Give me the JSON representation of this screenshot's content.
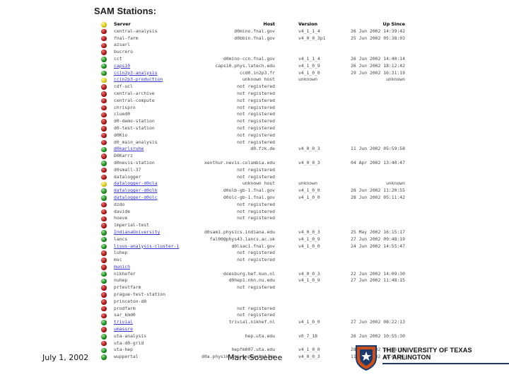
{
  "page": {
    "title": "SAM Stations:"
  },
  "table": {
    "headers": {
      "server": "Server",
      "host": "Host",
      "version": "Version",
      "since": "Up Since"
    },
    "rows": [
      {
        "status": "red",
        "link": false,
        "server": "central-analysis",
        "host": "d0mino.fnal.gov",
        "version": "v4_1_1_4",
        "since": "26 Jun 2002 14:39:42"
      },
      {
        "status": "red",
        "link": false,
        "server": "fnal-farm",
        "host": "d0bbin.fnal.gov",
        "version": "v4_0_0_3p1",
        "since": "25 Jun 2002 05:38:03"
      },
      {
        "status": "red",
        "link": false,
        "server": "azsarl",
        "host": "",
        "version": "",
        "since": ""
      },
      {
        "status": "red",
        "link": false,
        "server": "bucrero",
        "host": "",
        "version": "",
        "since": ""
      },
      {
        "status": "green",
        "link": false,
        "server": "cct",
        "host": "d0mino-ccn.fnal.gov",
        "version": "v4_1_1_4",
        "since": "26 Jun 2002 14:40:14"
      },
      {
        "status": "green",
        "link": true,
        "server": "caps10",
        "host": "caps10.phys.latech.edu",
        "version": "v4_1_0_9",
        "since": "26 Jun 2002 18:12:42"
      },
      {
        "status": "green",
        "link": true,
        "server": "ccin2p3-analysis",
        "host": "ccd0.in2p3.fr",
        "version": "v4_1_0_0",
        "since": "29 Jun 2002 16:31:19"
      },
      {
        "status": "yellow",
        "link": true,
        "server": "ccin2p3-production",
        "host": "unknown host",
        "version": "unknown",
        "since": "unknown"
      },
      {
        "status": "red",
        "link": false,
        "server": "cdf-ucl",
        "host": "not registered",
        "version": "",
        "since": ""
      },
      {
        "status": "red",
        "link": false,
        "server": "central-archive",
        "host": "not registered",
        "version": "",
        "since": ""
      },
      {
        "status": "red",
        "link": false,
        "server": "central-compute",
        "host": "not registered",
        "version": "",
        "since": ""
      },
      {
        "status": "red",
        "link": false,
        "server": "chrispro",
        "host": "not registered",
        "version": "",
        "since": ""
      },
      {
        "status": "red",
        "link": false,
        "server": "clued0",
        "host": "not registered",
        "version": "",
        "since": ""
      },
      {
        "status": "red",
        "link": false,
        "server": "d0-demo-station",
        "host": "not registered",
        "version": "",
        "since": ""
      },
      {
        "status": "red",
        "link": false,
        "server": "d0-test-station",
        "host": "not registered",
        "version": "",
        "since": ""
      },
      {
        "status": "red",
        "link": false,
        "server": "d0Kio",
        "host": "not registered",
        "version": "",
        "since": ""
      },
      {
        "status": "red",
        "link": false,
        "server": "d0_main_analysis",
        "host": "not registered",
        "version": "",
        "since": ""
      },
      {
        "status": "green",
        "link": true,
        "server": "d0karlsruhe",
        "host": "d0.fzk.de",
        "version": "v4_0_0_3",
        "since": "11 Jun 2002 05:59:58"
      },
      {
        "status": "red",
        "link": false,
        "server": "D0Karrz",
        "host": "",
        "version": "",
        "since": ""
      },
      {
        "status": "green",
        "link": false,
        "server": "d0nevis-station",
        "host": "xenthur.nevis.columbia.edu",
        "version": "v4_0_0_3",
        "since": "04 Apr 2002 13:40:47"
      },
      {
        "status": "red",
        "link": false,
        "server": "d0small-37",
        "host": "not registered",
        "version": "",
        "since": ""
      },
      {
        "status": "red",
        "link": false,
        "server": "datalogger",
        "host": "not registered",
        "version": "",
        "since": ""
      },
      {
        "status": "yellow",
        "link": true,
        "server": "datalogger-d0ola",
        "host": "unknown host",
        "version": "unknown",
        "since": "unknown"
      },
      {
        "status": "green",
        "link": true,
        "server": "datalogger-d0olb",
        "host": "d0olb-gb-1.fnal.gov",
        "version": "v4_1_0_0",
        "since": "28 Jun 2002 11:20:55"
      },
      {
        "status": "green",
        "link": true,
        "server": "datalogger-d0olc",
        "host": "d0olc-gb-1.fnal.gov",
        "version": "v4_1_0_0",
        "since": "28 Jun 2002 05:11:42"
      },
      {
        "status": "red",
        "link": false,
        "server": "dzdo",
        "host": "not registered",
        "version": "",
        "since": ""
      },
      {
        "status": "red",
        "link": false,
        "server": "davide",
        "host": "not registered",
        "version": "",
        "since": ""
      },
      {
        "status": "red",
        "link": false,
        "server": "hoeve",
        "host": "not registered",
        "version": "",
        "since": ""
      },
      {
        "status": "red",
        "link": false,
        "server": "imperial-test",
        "host": "",
        "version": "",
        "since": ""
      },
      {
        "status": "green",
        "link": true,
        "server": "IndianaUniversity",
        "host": "d0sam1.physics.indiana.edu",
        "version": "v4_0_0_3",
        "since": "25 May 2002 16:15:17"
      },
      {
        "status": "green",
        "link": false,
        "server": "lancs",
        "host": "fal00@phys43.lancs.ac.uk",
        "version": "v4_1_0_9",
        "since": "27 Jun 2002 09:48:19"
      },
      {
        "status": "green",
        "link": true,
        "server": "lisus-analysis-cluster-1",
        "host": "d0lsac1.fnal.gov",
        "version": "v4_1_0_0",
        "since": "24 Jun 2002 14:55:47"
      },
      {
        "status": "red",
        "link": false,
        "server": "luhep",
        "host": "not registered",
        "version": "",
        "since": ""
      },
      {
        "status": "red",
        "link": false,
        "server": "msc",
        "host": "not registered",
        "version": "",
        "since": ""
      },
      {
        "status": "red",
        "link": true,
        "server": "munich",
        "host": "",
        "version": "",
        "since": ""
      },
      {
        "status": "green",
        "link": false,
        "server": "nikhefer",
        "host": "doesburg.hef.kun.nl",
        "version": "v4_0_0_3",
        "since": "22 Jun 2002 14:09:30"
      },
      {
        "status": "green",
        "link": false,
        "server": "nuhep",
        "host": "d0hep1.nhn.nu.edu",
        "version": "v4_1_0_9",
        "since": "27 Jun 2002 11:48:15"
      },
      {
        "status": "red",
        "link": false,
        "server": "prtestfarm",
        "host": "not registered",
        "version": "",
        "since": ""
      },
      {
        "status": "red",
        "link": false,
        "server": "prague-test-station",
        "host": "",
        "version": "",
        "since": ""
      },
      {
        "status": "red",
        "link": false,
        "server": "princeton-d0",
        "host": "",
        "version": "",
        "since": ""
      },
      {
        "status": "red",
        "link": false,
        "server": "prodfarm",
        "host": "not registered",
        "version": "",
        "since": ""
      },
      {
        "status": "red",
        "link": false,
        "server": "sar_kmd0",
        "host": "not registered",
        "version": "",
        "since": ""
      },
      {
        "status": "green",
        "link": true,
        "server": "trivial",
        "host": "trivial.nikhef.nl",
        "version": "v4_1_0_0",
        "since": "27 Jun 2002 08:22:13"
      },
      {
        "status": "red",
        "link": true,
        "server": "umassre",
        "host": "",
        "version": "",
        "since": ""
      },
      {
        "status": "green",
        "link": false,
        "server": "uta-analysis",
        "host": "hep.uta.edu",
        "version": "v0_7_18",
        "since": "26 Jun 2002 10:55:30"
      },
      {
        "status": "red",
        "link": false,
        "server": "uta-d0-grid",
        "host": "",
        "version": "",
        "since": ""
      },
      {
        "status": "green",
        "link": false,
        "server": "uta-hep",
        "host": "hepfm007.uta.edu",
        "version": "v4_1_0_0",
        "since": "28 Jun 2002 16:46:57"
      },
      {
        "status": "green",
        "link": false,
        "server": "wuppertal",
        "host": "d0a.physik.uni-wuppertal.de",
        "version": "v4_0_0_3",
        "since": "11 Jun 2002 15:01:01"
      }
    ]
  },
  "footer": {
    "date": "July 1, 2002",
    "author": "Mark Sosebee",
    "logo_line1": "THE UNIVERSITY OF TEXAS",
    "logo_line2": "AT ARLINGTON"
  },
  "colors": {
    "status_red": "#a81818",
    "status_green": "#1d8a1d",
    "status_yellow": "#d8c81a",
    "link": "#3333cc",
    "logo_blue": "#1e3a6b",
    "logo_orange": "#c8501e"
  }
}
